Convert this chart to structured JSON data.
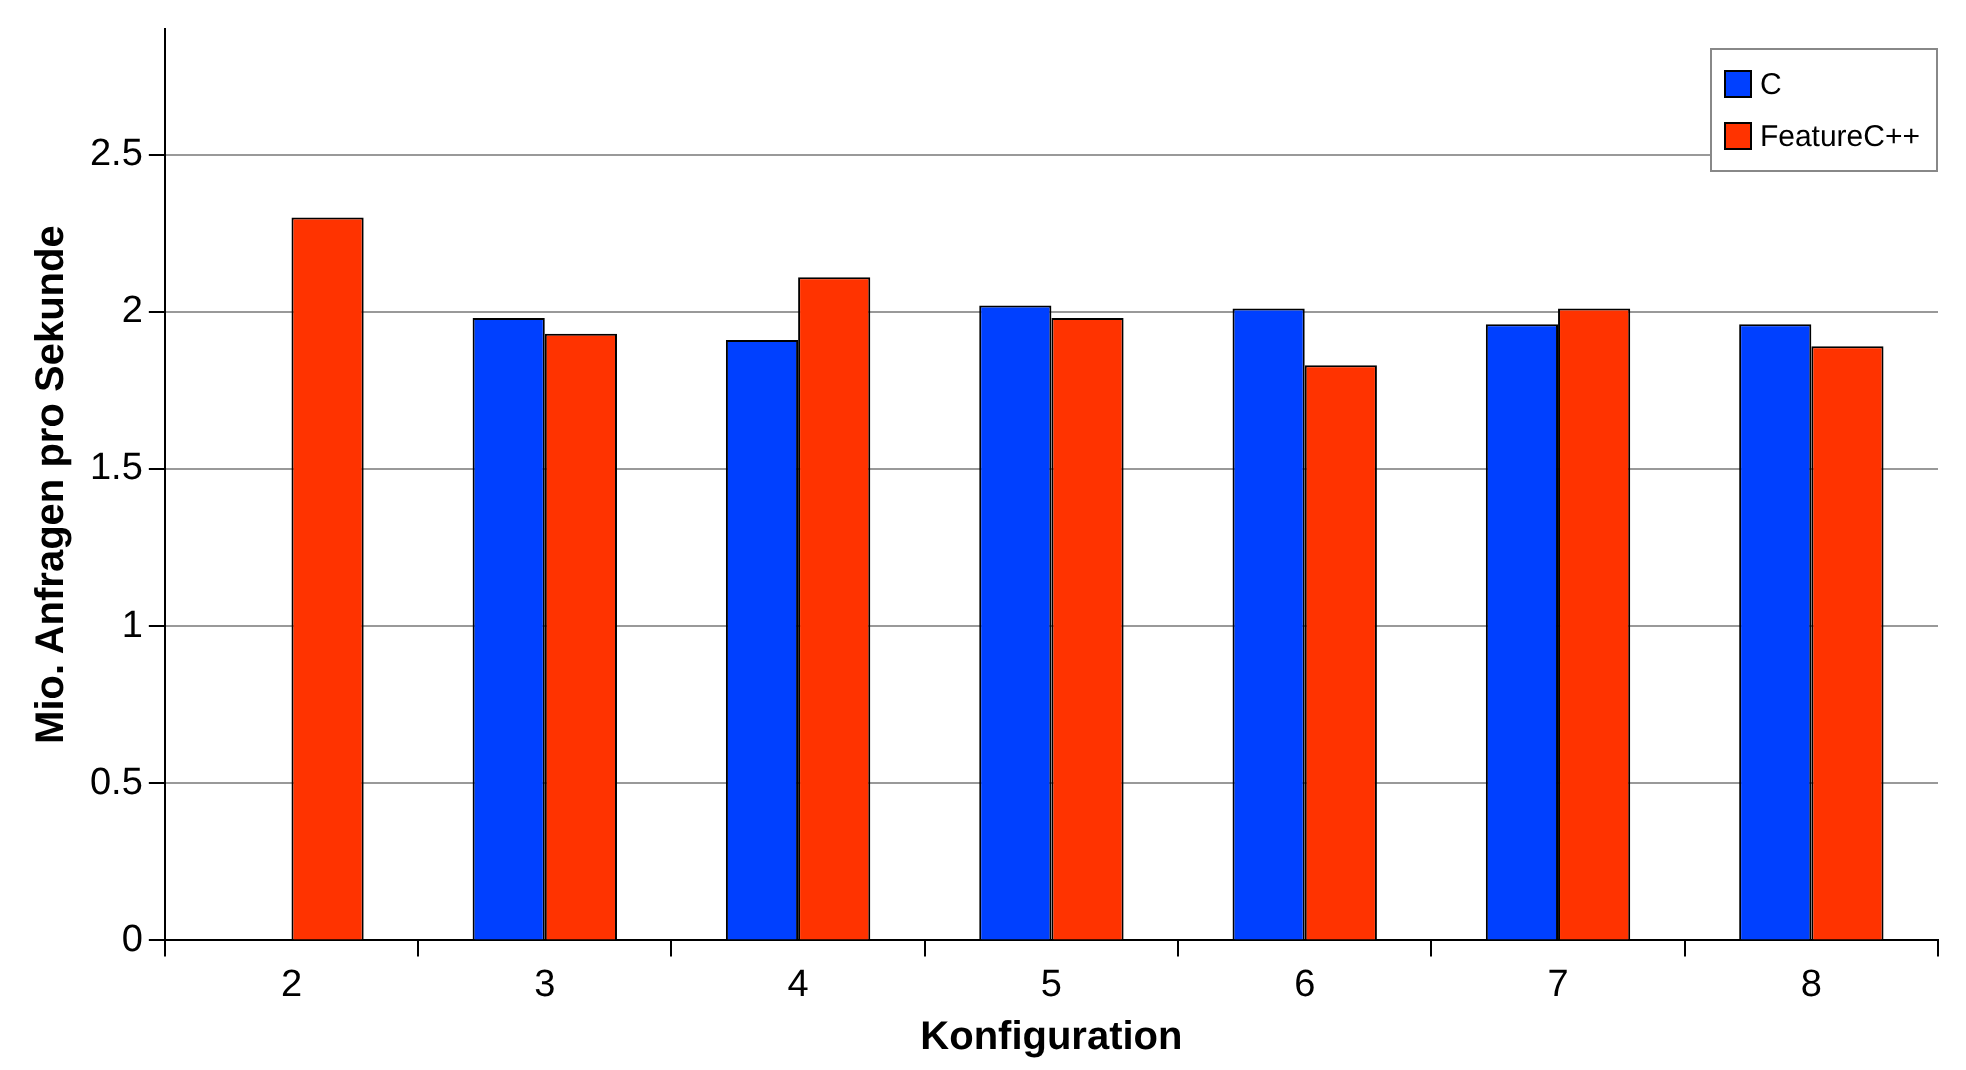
{
  "chart_data": {
    "type": "bar",
    "xlabel": "Konfiguration",
    "ylabel": "Mio. Anfragen pro Sekunde",
    "categories": [
      "2",
      "3",
      "4",
      "5",
      "6",
      "7",
      "8"
    ],
    "series": [
      {
        "name": "C",
        "color": "#0040ff",
        "values": [
          null,
          1.98,
          1.91,
          2.02,
          2.01,
          1.96,
          1.96
        ]
      },
      {
        "name": "FeatureC++",
        "color": "#ff3300",
        "values": [
          2.3,
          1.93,
          2.11,
          1.98,
          1.83,
          2.01,
          1.89
        ]
      }
    ],
    "ylim": [
      0,
      2.9
    ],
    "yticks": [
      0,
      0.5,
      1,
      1.5,
      2,
      2.5
    ],
    "grid": "y",
    "legend": "top right"
  }
}
